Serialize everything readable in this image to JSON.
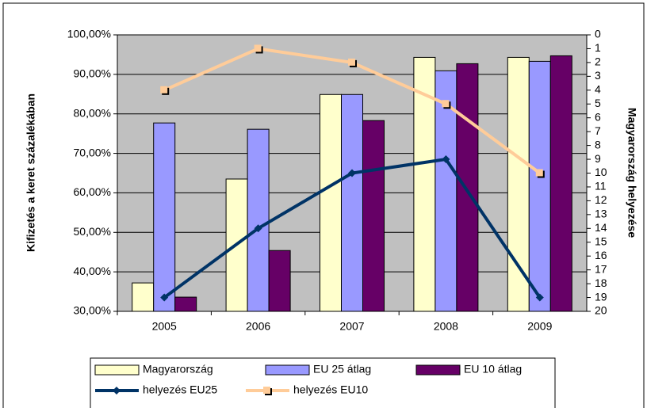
{
  "chart_data": {
    "type": "bar",
    "categories": [
      "2005",
      "2006",
      "2007",
      "2008",
      "2009"
    ],
    "ylabel": "Kifizetés a keret százalékában",
    "y2label": "Magyarország helyezése",
    "ylim": [
      30,
      100
    ],
    "yticks": [
      {
        "value": 30,
        "label": "30,00%"
      },
      {
        "value": 40,
        "label": "40,00%"
      },
      {
        "value": 50,
        "label": "50,00%"
      },
      {
        "value": 60,
        "label": "60,00%"
      },
      {
        "value": 70,
        "label": "70,00%"
      },
      {
        "value": 80,
        "label": "80,00%"
      },
      {
        "value": 90,
        "label": "90,00%"
      },
      {
        "value": 100,
        "label": "100,00%"
      }
    ],
    "y2lim": [
      0,
      20
    ],
    "y2_reversed": true,
    "y2ticks": [
      0,
      1,
      2,
      3,
      4,
      5,
      6,
      7,
      8,
      9,
      10,
      11,
      12,
      13,
      14,
      15,
      16,
      17,
      18,
      19,
      20
    ],
    "grid": true,
    "legend": "bottom",
    "series": [
      {
        "name": "Magyarország",
        "type": "bar",
        "color": "#ffffcc",
        "values": [
          37.2,
          63.5,
          84.9,
          94.3,
          94.3
        ]
      },
      {
        "name": "EU 25 átlag",
        "type": "bar",
        "color": "#9999ff",
        "values": [
          77.7,
          76.1,
          84.9,
          90.9,
          93.3
        ]
      },
      {
        "name": "EU 10 átlag",
        "type": "bar",
        "color": "#660066",
        "values": [
          33.6,
          45.4,
          78.3,
          92.7,
          94.7
        ]
      },
      {
        "name": "helyezés EU25",
        "type": "line",
        "axis": "y2",
        "marker": "diamond",
        "color": "#003366",
        "values": [
          19,
          14,
          10,
          9,
          19
        ]
      },
      {
        "name": "helyezés EU10",
        "type": "line",
        "axis": "y2",
        "marker": "square",
        "color": "#ffcc99",
        "values": [
          4,
          1,
          2,
          5,
          10
        ]
      }
    ]
  }
}
